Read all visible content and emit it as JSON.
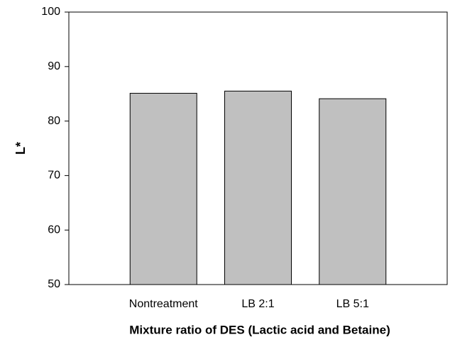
{
  "chart_data": {
    "type": "bar",
    "x_label": "Mixture ratio of DES (Lactic acid and Betaine)",
    "y_label": "L*",
    "categories": [
      "Nontreatment",
      "LB 2:1",
      "LB 5:1"
    ],
    "values": [
      85.1,
      85.5,
      84.1
    ],
    "color": "#c0c0c0",
    "ylim": [
      50,
      100
    ],
    "yticks": [
      50,
      60,
      70,
      80,
      90,
      100
    ],
    "grid": false
  }
}
